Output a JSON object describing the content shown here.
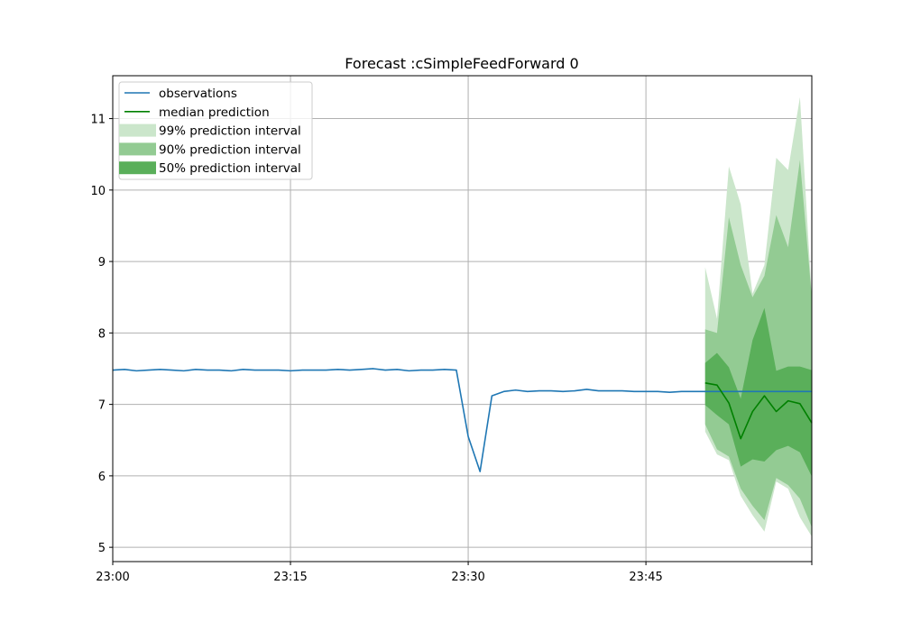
{
  "chart_data": {
    "type": "line",
    "title": "Forecast :cSimpleFeedForward 0",
    "xlabel": "",
    "ylabel": "",
    "x_unit": "minutes",
    "xlim": [
      "23:00",
      "23:59"
    ],
    "ylim": [
      4.8,
      11.6
    ],
    "x_ticks": [
      "23:00",
      "23:15",
      "23:30",
      "23:45"
    ],
    "y_ticks": [
      5,
      6,
      7,
      8,
      9,
      10,
      11
    ],
    "grid": true,
    "legend_position": "upper-left",
    "colors": {
      "observations": "#1f77b4",
      "median": "#008000",
      "band99": "#cbe6cb",
      "band90": "#93cb93",
      "band50": "#5aaf5a",
      "grid": "#b0b0b0"
    },
    "legend": [
      {
        "label": "observations",
        "kind": "line",
        "key": "observations"
      },
      {
        "label": "median prediction",
        "kind": "line",
        "key": "median"
      },
      {
        "label": "99% prediction interval",
        "kind": "patch",
        "key": "band99"
      },
      {
        "label": "90% prediction interval",
        "kind": "patch",
        "key": "band90"
      },
      {
        "label": "50% prediction interval",
        "kind": "patch",
        "key": "band50"
      }
    ],
    "series": [
      {
        "name": "observations",
        "x": [
          "23:00",
          "23:01",
          "23:02",
          "23:03",
          "23:04",
          "23:05",
          "23:06",
          "23:07",
          "23:08",
          "23:09",
          "23:10",
          "23:11",
          "23:12",
          "23:13",
          "23:14",
          "23:15",
          "23:16",
          "23:17",
          "23:18",
          "23:19",
          "23:20",
          "23:21",
          "23:22",
          "23:23",
          "23:24",
          "23:25",
          "23:26",
          "23:27",
          "23:28",
          "23:29",
          "23:30",
          "23:31",
          "23:32",
          "23:33",
          "23:34",
          "23:35",
          "23:36",
          "23:37",
          "23:38",
          "23:39",
          "23:40",
          "23:41",
          "23:42",
          "23:43",
          "23:44",
          "23:45",
          "23:46",
          "23:47",
          "23:48",
          "23:49",
          "23:50",
          "23:51",
          "23:52",
          "23:53",
          "23:54",
          "23:55",
          "23:56",
          "23:57",
          "23:58",
          "23:59"
        ],
        "y": [
          7.48,
          7.49,
          7.47,
          7.48,
          7.49,
          7.48,
          7.47,
          7.49,
          7.48,
          7.48,
          7.47,
          7.49,
          7.48,
          7.48,
          7.48,
          7.47,
          7.48,
          7.48,
          7.48,
          7.49,
          7.48,
          7.49,
          7.5,
          7.48,
          7.49,
          7.47,
          7.48,
          7.48,
          7.49,
          7.48,
          6.55,
          6.06,
          7.12,
          7.18,
          7.2,
          7.18,
          7.19,
          7.19,
          7.18,
          7.19,
          7.21,
          7.19,
          7.19,
          7.19,
          7.18,
          7.18,
          7.18,
          7.17,
          7.18,
          7.18,
          7.18,
          7.18,
          7.18,
          7.18,
          7.18,
          7.18,
          7.18,
          7.18,
          7.18,
          7.18
        ]
      },
      {
        "name": "median prediction",
        "x": [
          "23:50",
          "23:51",
          "23:52",
          "23:53",
          "23:54",
          "23:55",
          "23:56",
          "23:57",
          "23:58",
          "23:59"
        ],
        "y": [
          7.3,
          7.27,
          7.02,
          6.52,
          6.9,
          7.12,
          6.9,
          7.05,
          7.01,
          6.74
        ]
      }
    ],
    "intervals": [
      {
        "name": "99% prediction interval",
        "key": "band99",
        "x": [
          "23:50",
          "23:51",
          "23:52",
          "23:53",
          "23:54",
          "23:55",
          "23:56",
          "23:57",
          "23:58",
          "23:59"
        ],
        "upper": [
          8.92,
          8.2,
          10.33,
          9.8,
          8.55,
          8.95,
          10.45,
          10.28,
          11.3,
          8.5
        ],
        "lower": [
          6.62,
          6.3,
          6.22,
          5.72,
          5.45,
          5.22,
          5.92,
          5.82,
          5.42,
          5.15
        ]
      },
      {
        "name": "90% prediction interval",
        "key": "band90",
        "x": [
          "23:50",
          "23:51",
          "23:52",
          "23:53",
          "23:54",
          "23:55",
          "23:56",
          "23:57",
          "23:58",
          "23:59"
        ],
        "upper": [
          8.05,
          8.0,
          9.62,
          8.95,
          8.5,
          8.8,
          9.65,
          9.2,
          10.42,
          8.5
        ],
        "lower": [
          6.72,
          6.37,
          6.27,
          5.82,
          5.58,
          5.38,
          5.97,
          5.87,
          5.68,
          5.28
        ]
      },
      {
        "name": "50% prediction interval",
        "key": "band50",
        "x": [
          "23:50",
          "23:51",
          "23:52",
          "23:53",
          "23:54",
          "23:55",
          "23:56",
          "23:57",
          "23:58",
          "23:59"
        ],
        "upper": [
          7.58,
          7.72,
          7.52,
          7.08,
          7.9,
          8.35,
          7.47,
          7.53,
          7.53,
          7.48
        ],
        "lower": [
          6.99,
          6.85,
          6.72,
          6.13,
          6.23,
          6.2,
          6.36,
          6.42,
          6.33,
          5.99
        ]
      }
    ]
  }
}
